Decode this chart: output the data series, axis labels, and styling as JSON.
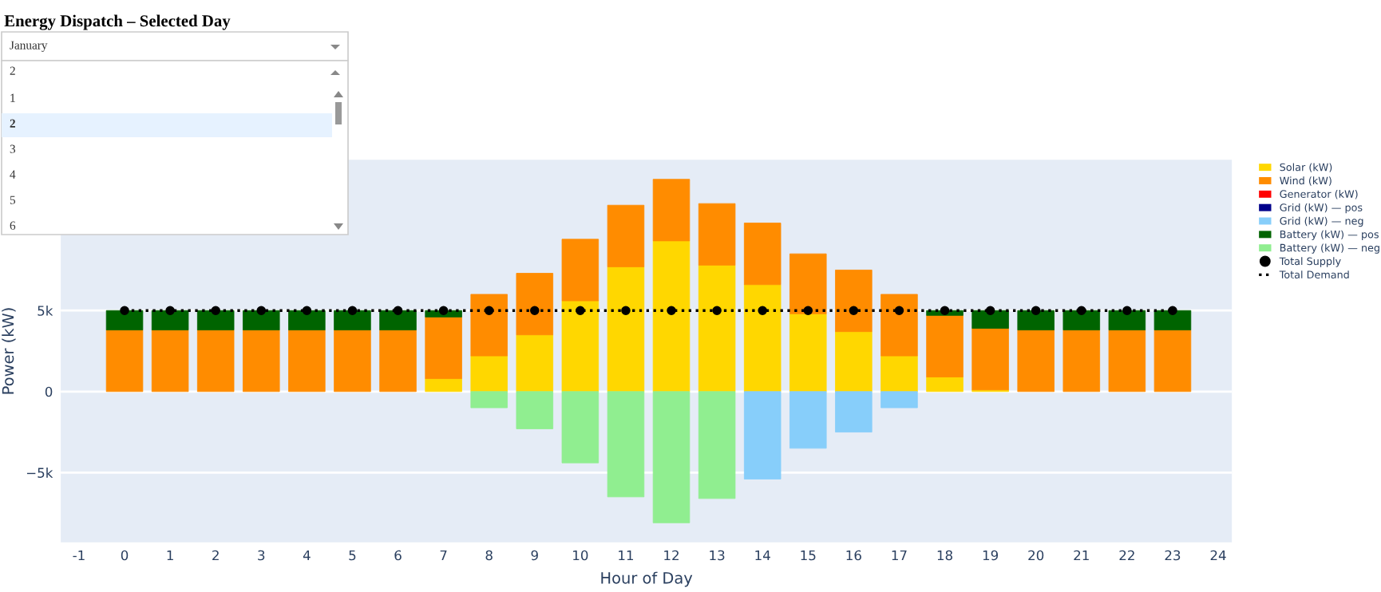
{
  "chart_data": {
    "type": "bar",
    "title": "Energy Dispatch – Selected Day",
    "xlabel": "Hour of Day",
    "ylabel": "Power (kW)",
    "annotations": [
      "January",
      "2",
      "1",
      "2",
      "3",
      "4",
      "5",
      "6"
    ],
    "x": [
      0,
      1,
      2,
      3,
      4,
      5,
      6,
      7,
      8,
      9,
      10,
      11,
      12,
      13,
      14,
      15,
      16,
      17,
      18,
      19,
      20,
      21,
      22,
      23
    ],
    "stacked": true,
    "series": [
      {
        "name": "Solar (kW)",
        "color": "#ffd700",
        "values": [
          null,
          null,
          null,
          null,
          null,
          null,
          null,
          800,
          2200,
          3500,
          5600,
          7700,
          9300,
          7800,
          6600,
          4800,
          3700,
          2200,
          900,
          100,
          null,
          null,
          null,
          null
        ]
      },
      {
        "name": "Wind (kW)",
        "color": "#ff8c00",
        "values": [
          3800,
          3800,
          3800,
          3800,
          3800,
          3800,
          3800,
          3800,
          3800,
          3800,
          3800,
          3800,
          3800,
          3800,
          3800,
          3700,
          3800,
          3800,
          3800,
          3800,
          3800,
          3800,
          3800,
          3800
        ]
      },
      {
        "name": "Generator (kW)",
        "color": "#ff0000",
        "values": [
          null,
          null,
          null,
          null,
          null,
          null,
          null,
          null,
          null,
          null,
          null,
          null,
          null,
          null,
          null,
          null,
          null,
          null,
          null,
          null,
          null,
          null,
          null,
          null
        ]
      },
      {
        "name": "Grid (kW) — pos",
        "color": "#00008b",
        "values": [
          null,
          null,
          null,
          null,
          null,
          null,
          null,
          null,
          null,
          null,
          null,
          null,
          null,
          null,
          null,
          null,
          null,
          null,
          null,
          null,
          null,
          null,
          null,
          null
        ]
      },
      {
        "name": "Grid (kW) — neg",
        "color": "#87cefa",
        "values": [
          null,
          null,
          null,
          null,
          null,
          null,
          null,
          null,
          null,
          null,
          null,
          null,
          null,
          null,
          -5400,
          -3500,
          -2500,
          -1000,
          null,
          null,
          null,
          null,
          null,
          null
        ]
      },
      {
        "name": "Battery (kW) — pos",
        "color": "#006400",
        "values": [
          1200,
          1200,
          1200,
          1200,
          1200,
          1200,
          1200,
          400,
          null,
          null,
          null,
          null,
          null,
          null,
          null,
          null,
          null,
          null,
          300,
          1100,
          1200,
          1200,
          1200,
          1200
        ]
      },
      {
        "name": "Battery (kW) — neg",
        "color": "#90ee90",
        "values": [
          null,
          null,
          null,
          null,
          null,
          null,
          null,
          null,
          -1000,
          -2300,
          -4400,
          -6500,
          -8100,
          -6600,
          null,
          null,
          null,
          null,
          null,
          null,
          null,
          null,
          null,
          null
        ]
      },
      {
        "name": "Total Supply",
        "type": "scatter",
        "marker": "circle",
        "color": "#000000",
        "values": [
          5000,
          5000,
          5000,
          5000,
          5000,
          5000,
          5000,
          5000,
          5000,
          5000,
          5000,
          5000,
          5000,
          5000,
          5000,
          5000,
          5000,
          5000,
          5000,
          5000,
          5000,
          5000,
          5000,
          5000
        ]
      },
      {
        "name": "Total Demand",
        "type": "line",
        "line_style": "dotted",
        "color": "#000000",
        "values": [
          5000,
          5000,
          5000,
          5000,
          5000,
          5000,
          5000,
          5000,
          5000,
          5000,
          5000,
          5000,
          5000,
          5000,
          5000,
          5000,
          5000,
          5000,
          5000,
          5000,
          5000,
          5000,
          5000,
          5000
        ]
      }
    ],
    "xlim": [
      -1.4,
      24.3
    ],
    "xticks": [
      -1,
      0,
      1,
      2,
      3,
      4,
      5,
      6,
      7,
      8,
      9,
      10,
      11,
      12,
      13,
      14,
      15,
      16,
      17,
      18,
      19,
      20,
      21,
      22,
      23,
      24
    ],
    "ylim": [
      -9300,
      14300
    ],
    "yticks": [
      {
        "value": -5000,
        "label": "−5k"
      },
      0,
      {
        "value": 5000,
        "label": "5k"
      }
    ],
    "grid": "y",
    "legend": "right"
  }
}
